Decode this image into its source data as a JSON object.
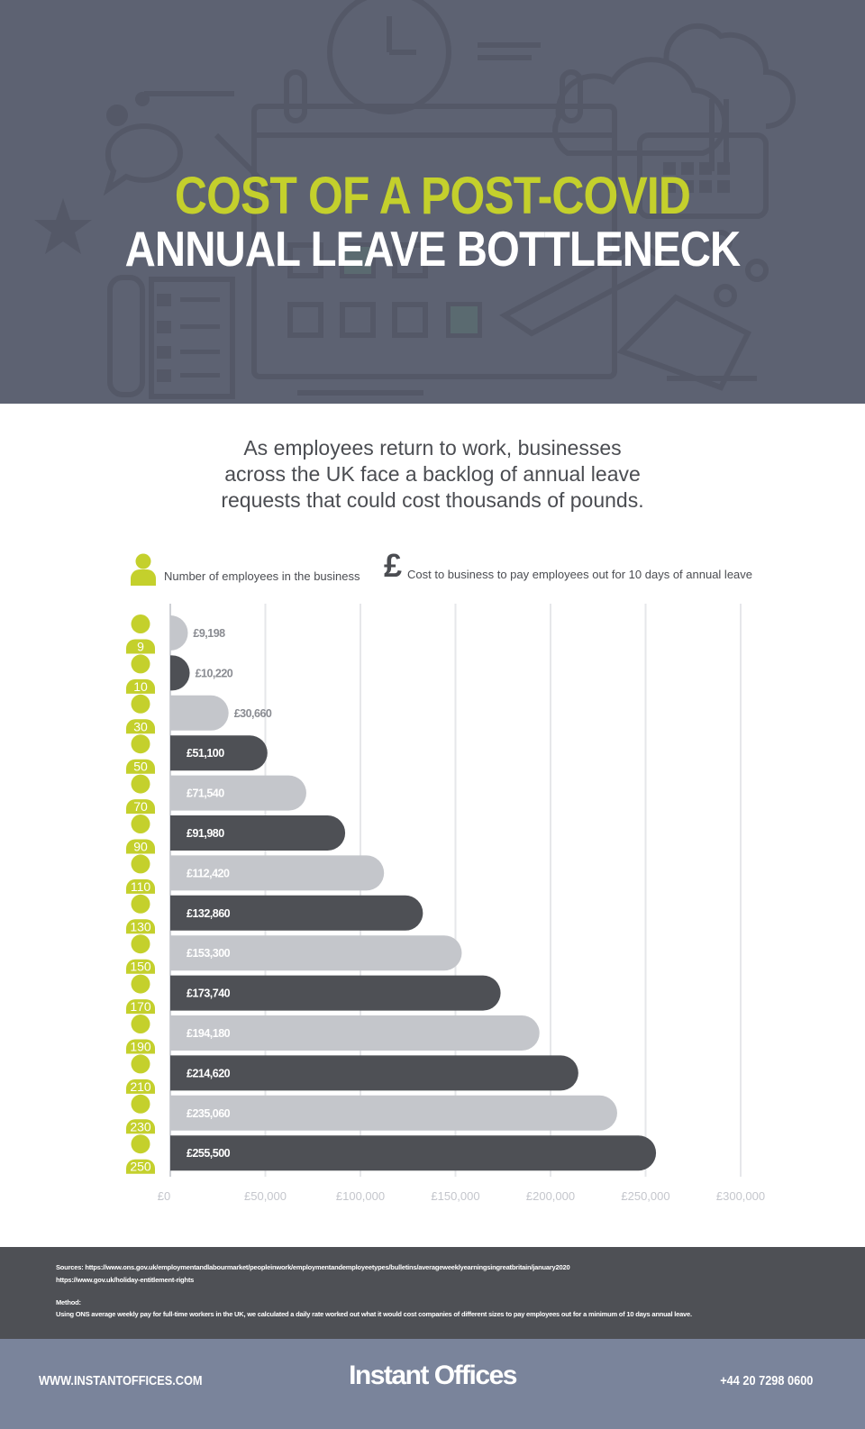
{
  "header": {
    "title_line1": "COST OF A POST-COVID",
    "title_line2": "ANNUAL LEAVE BOTTLENECK",
    "bg_color": "#5d6272",
    "accent_color": "#c4d02c"
  },
  "intro": {
    "line1": "As employees return to work, businesses",
    "line2": "across the UK face a backlog of annual leave",
    "line3": "requests that could cost thousands of pounds."
  },
  "legend": {
    "employees_icon": "person-icon",
    "employees_label": "Number of employees in the business",
    "cost_icon": "pound-icon",
    "cost_symbol": "£",
    "cost_label": "Cost to business to pay employees out for 10 days of annual leave"
  },
  "chart_data": {
    "type": "bar",
    "orientation": "horizontal",
    "categories": [
      "9",
      "10",
      "30",
      "50",
      "70",
      "90",
      "110",
      "130",
      "150",
      "170",
      "190",
      "210",
      "230",
      "250"
    ],
    "values": [
      9198,
      10220,
      30660,
      51100,
      71540,
      91980,
      112420,
      132860,
      153300,
      173740,
      194180,
      214620,
      235060,
      255500
    ],
    "value_labels": [
      "£9,198",
      "£10,220",
      "£30,660",
      "£51,100",
      "£71,540",
      "£91,980",
      "£112,420",
      "£132,860",
      "£153,300",
      "£173,740",
      "£194,180",
      "£214,620",
      "£235,060",
      "£255,500"
    ],
    "x_ticks": [
      0,
      50000,
      100000,
      150000,
      200000,
      250000,
      300000
    ],
    "x_tick_labels": [
      "£0",
      "£50,000",
      "£100,000",
      "£150,000",
      "£200,000",
      "£250,000",
      "£300,000"
    ],
    "xlim": [
      0,
      300000
    ],
    "grid": true,
    "bar_colors": [
      "#c4c6cb",
      "#4e5055"
    ],
    "icon_color": "#c4d02c",
    "title": "",
    "xlabel": "",
    "ylabel": ""
  },
  "sources": {
    "sources_line": "Sources: https://www.ons.gov.uk/employmentandlabourmarket/peopleinwork/employmentandemployeetypes/bulletins/averageweeklyearningsingreatbritain/january2020",
    "sources_line2": "https://www.gov.uk/holiday-entitlement-rights",
    "method_heading": "Method:",
    "method_text": "Using ONS average weekly pay for full-time workers in the UK, we calculated a daily rate worked out what it would cost companies of different sizes to pay employees out for a minimum of 10 days annual leave."
  },
  "footer": {
    "url": "WWW.INSTANTOFFICES.COM",
    "logo": "Instant Offices",
    "phone": "+44 20 7298 0600"
  }
}
